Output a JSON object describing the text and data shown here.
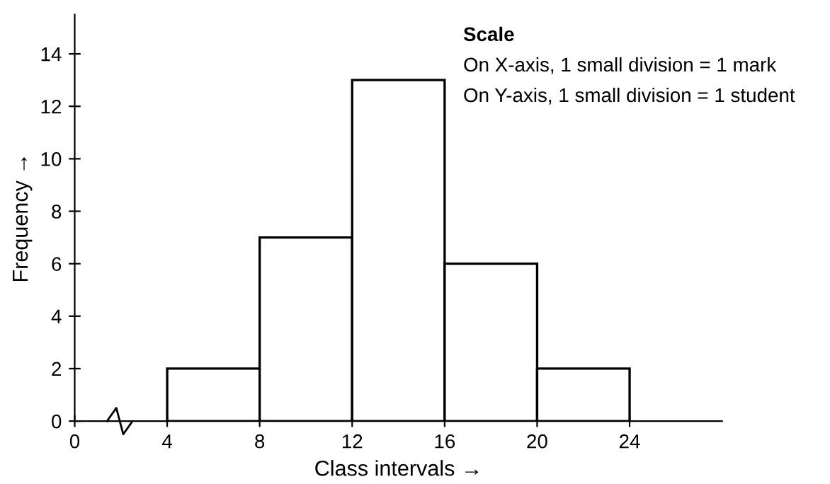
{
  "chart_data": {
    "type": "histogram",
    "bins": [
      4,
      8,
      12,
      16,
      20,
      24
    ],
    "values": [
      2,
      7,
      13,
      6,
      2
    ],
    "color": "#ffffff",
    "xlabel": "Class intervals →",
    "ylabel": "Frequency →",
    "xlim": [
      0,
      28
    ],
    "xticks": [
      0,
      4,
      8,
      12,
      16,
      20,
      24
    ],
    "ylim": [
      0,
      15.5
    ],
    "yticks": [
      0,
      2,
      4,
      6,
      8,
      10,
      12,
      14
    ],
    "annotations": [
      "Scale",
      "On X-axis, 1 small division = 1 mark",
      "On Y-axis, 1 small division = 1 student"
    ],
    "grid": false,
    "legend": false
  }
}
